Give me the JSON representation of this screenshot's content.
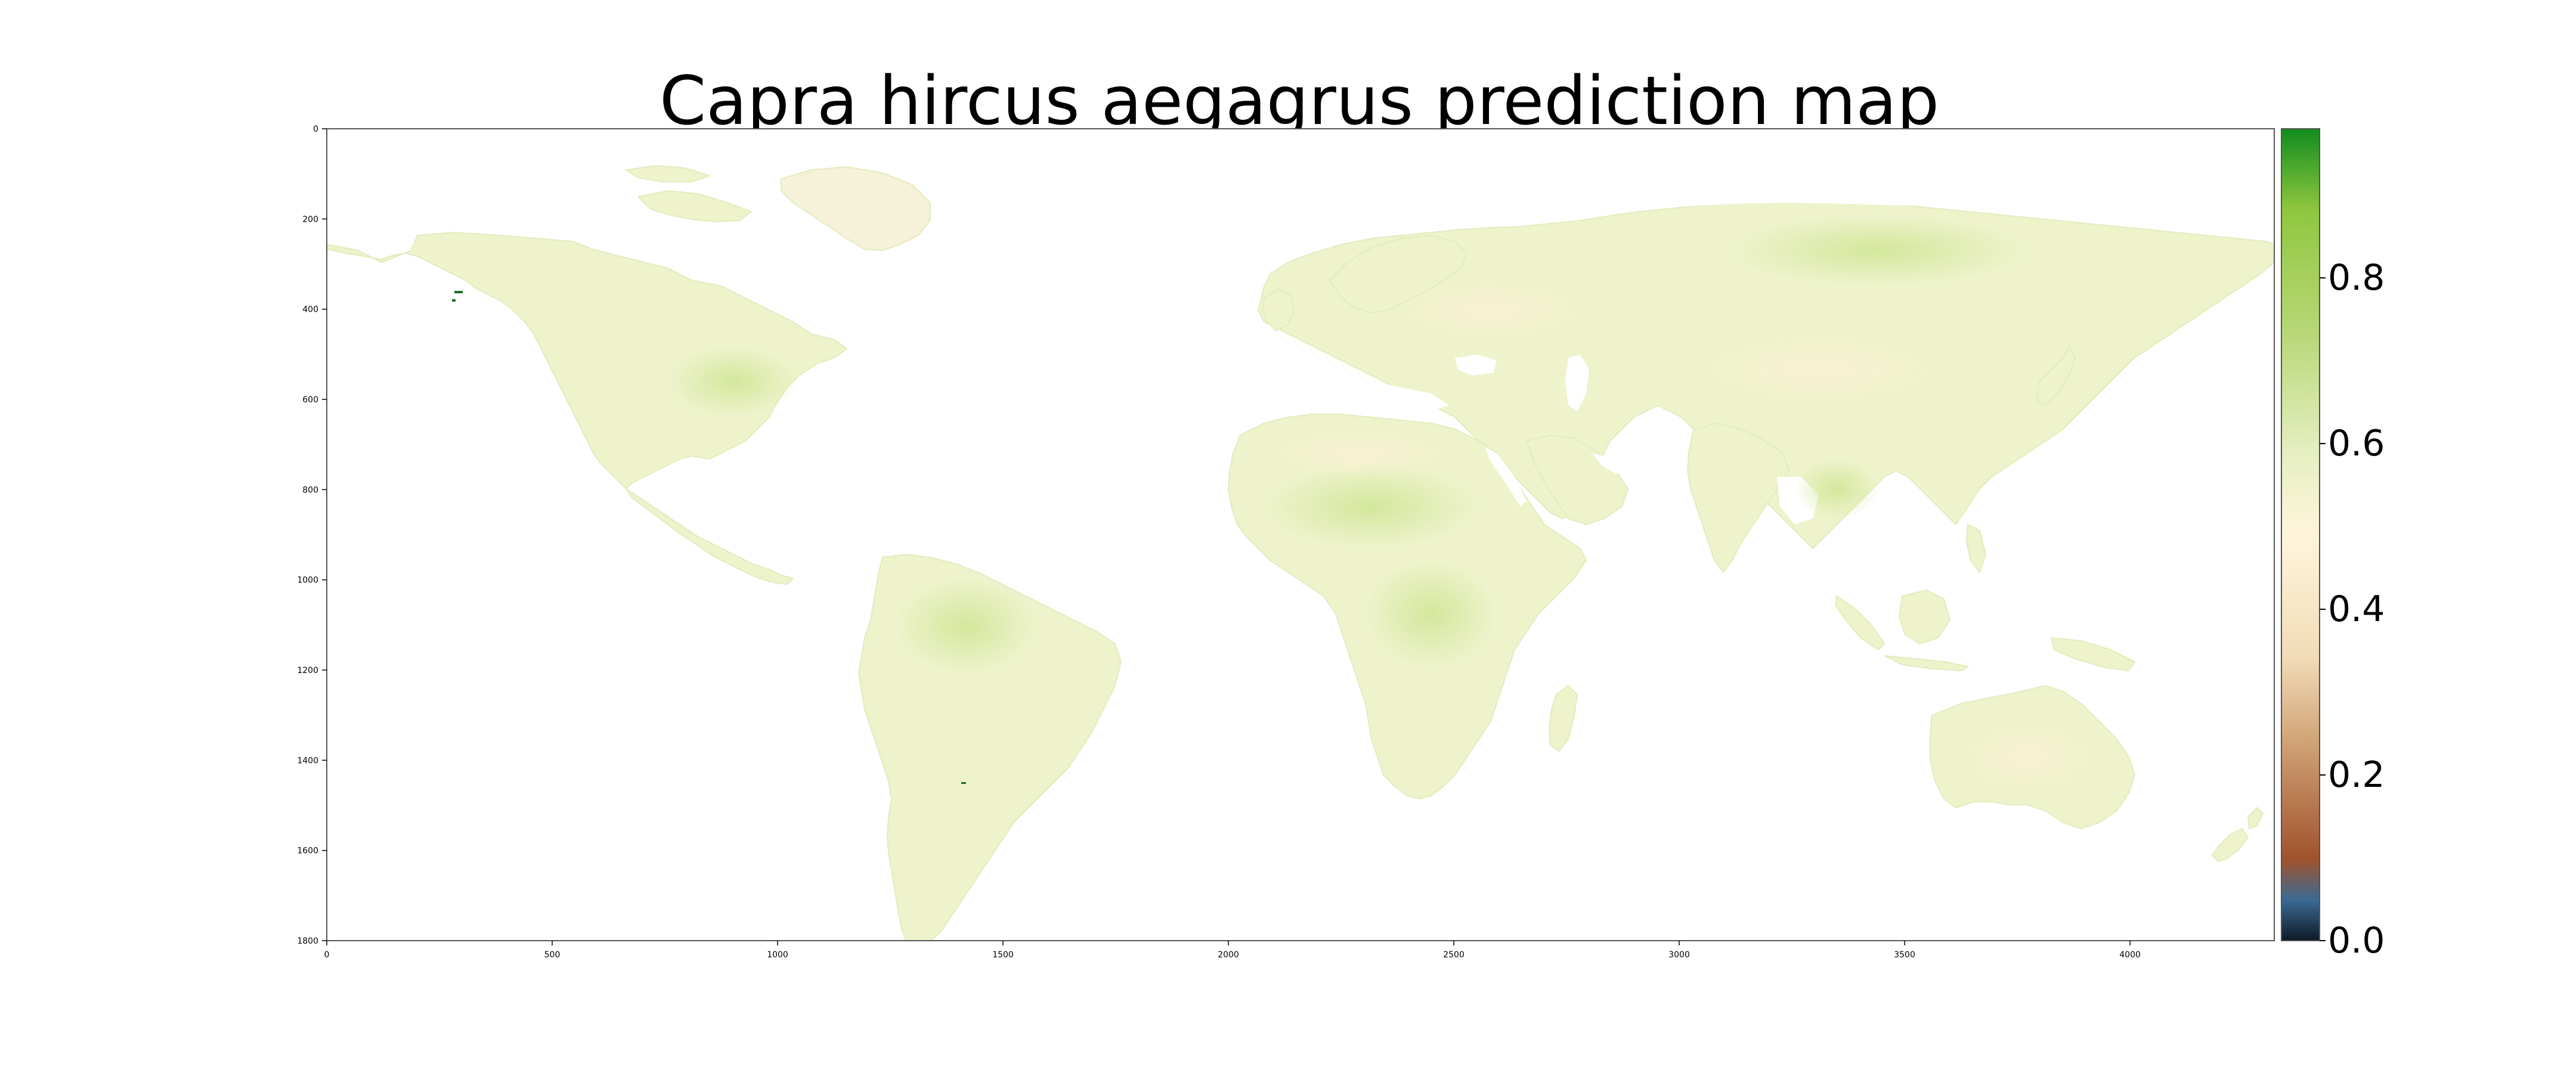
{
  "title": "Capra hircus aegagrus prediction map",
  "chart_data": {
    "type": "heatmap",
    "title": "Capra hircus aegagrus prediction map",
    "xlabel": "",
    "ylabel": "",
    "x_ticks": [
      0,
      500,
      1000,
      1500,
      2000,
      2500,
      3000,
      3500,
      4000
    ],
    "y_ticks": [
      0,
      200,
      400,
      600,
      800,
      1000,
      1200,
      1400,
      1600,
      1800
    ],
    "xlim": [
      0,
      4320
    ],
    "ylim": [
      1800,
      0
    ],
    "grid": false,
    "colormap": {
      "name": "diverging brown-cream-green",
      "stops": [
        {
          "value": 0.0,
          "color": "#0d1a26"
        },
        {
          "value": 0.05,
          "color": "#3b6a94"
        },
        {
          "value": 0.1,
          "color": "#a0522d"
        },
        {
          "value": 0.25,
          "color": "#d2a679"
        },
        {
          "value": 0.35,
          "color": "#f2dcb8"
        },
        {
          "value": 0.5,
          "color": "#fff5dc"
        },
        {
          "value": 0.6,
          "color": "#e6efc2"
        },
        {
          "value": 0.75,
          "color": "#b7d776"
        },
        {
          "value": 0.9,
          "color": "#8fc73e"
        },
        {
          "value": 1.0,
          "color": "#118c1f"
        }
      ]
    },
    "colorbar": {
      "ticks": [
        0.0,
        0.2,
        0.4,
        0.6,
        0.8
      ],
      "tick_labels": [
        "0.0",
        "0.2",
        "0.4",
        "0.6",
        "0.8"
      ],
      "range": [
        0.0,
        0.98
      ],
      "position": "right"
    },
    "typical_land_value_range": [
      0.45,
      0.65
    ],
    "ocean": "no data (white)"
  },
  "colors": {
    "land_base": "#eef3cc",
    "land_green": "#d6e9a3",
    "land_cream": "#faefd2",
    "ocean": "#ffffff",
    "frame": "#555555"
  }
}
